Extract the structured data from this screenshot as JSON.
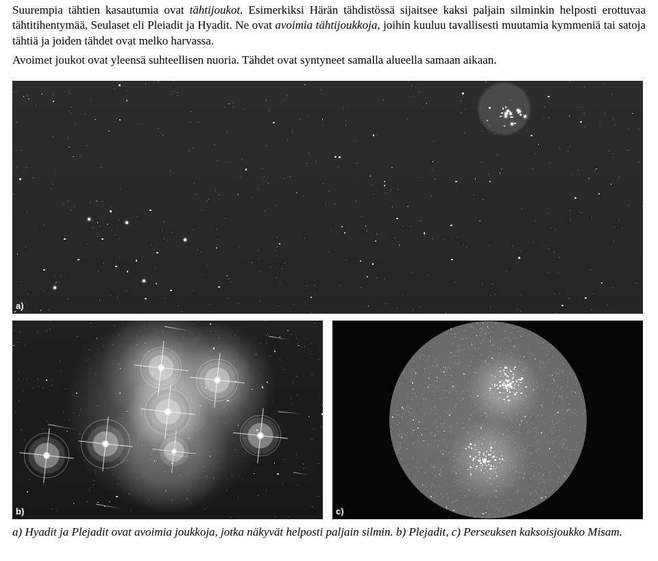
{
  "text": {
    "p1a": "Suurempia tähtien kasautumia ovat ",
    "p1b": "tähtijoukot.",
    "p1c": " Esimerkiksi Härän tähdistössä sijaitsee kaksi paljain silmin­kin helposti erottuvaa tähtitihentymää, Seulaset eli Pleiadit ja Hyadit. Ne ovat ",
    "p1d": "avoimia tähtijoukkoja,",
    "p1e": " joihin kuuluu tavallisesti muutamia kymmeniä tai satoja tähtiä ja joiden tähdet ovat melko harvassa.",
    "p2": "Avoimet joukot ovat yleensä suhteellisen nuoria. Tähdet ovat syntyneet samalla alueella samaan aikaan.",
    "caption": "a) Hyadit ja Plejadit ovat avoimia joukkoja, jotka näkyvät helposti paljain silmin.  b) Plejadit, c) Perseuksen kaksoisjoukko Misam."
  },
  "labels": {
    "a": "a)",
    "b": "b)",
    "c": "c)"
  }
}
